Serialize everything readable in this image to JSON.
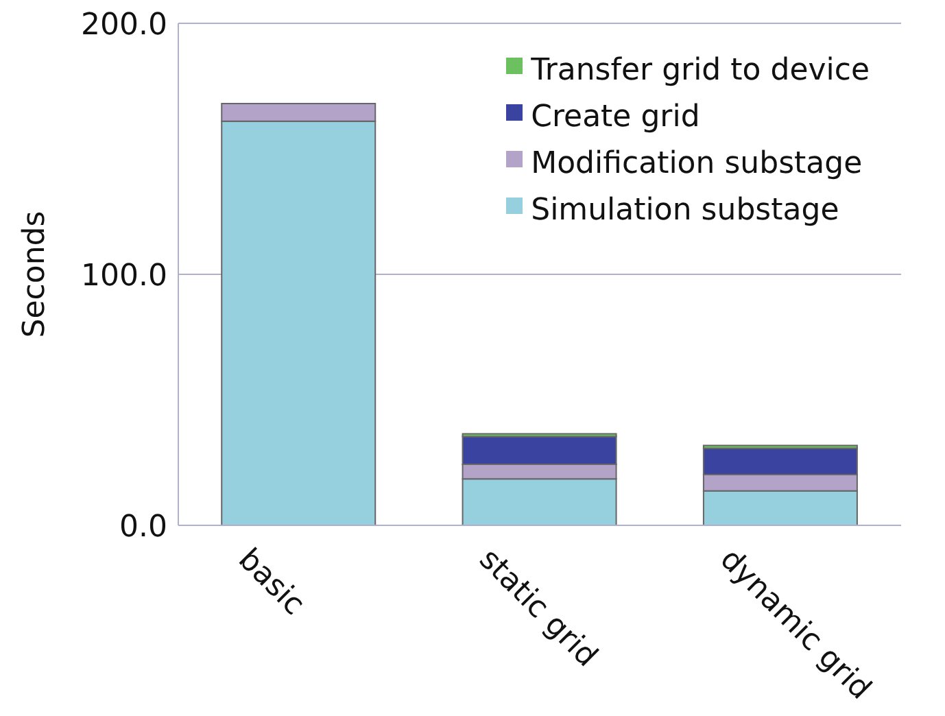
{
  "chart_data": {
    "type": "bar",
    "stacked": true,
    "ylabel": "Seconds",
    "categories": [
      "basic",
      "static grid",
      "dynamic grid"
    ],
    "series": [
      {
        "name": "Simulation substage",
        "color": "#96cfdd",
        "values": [
          161,
          18.5,
          13.7
        ]
      },
      {
        "name": "Modification substage",
        "color": "#b3a3c9",
        "values": [
          7,
          5.8,
          6.5
        ]
      },
      {
        "name": "Create grid",
        "color": "#3a44a0",
        "values": [
          0,
          11.1,
          10.5
        ]
      },
      {
        "name": "Transfer grid to device",
        "color": "#6cc060",
        "values": [
          0,
          1.1,
          1.1
        ]
      }
    ],
    "ylim": [
      0,
      200
    ],
    "yticks": [
      {
        "value": 0,
        "label": "0.0"
      },
      {
        "value": 100,
        "label": "100.0"
      },
      {
        "value": 200,
        "label": "200.0"
      }
    ],
    "grid": "y",
    "legend": "top right"
  }
}
